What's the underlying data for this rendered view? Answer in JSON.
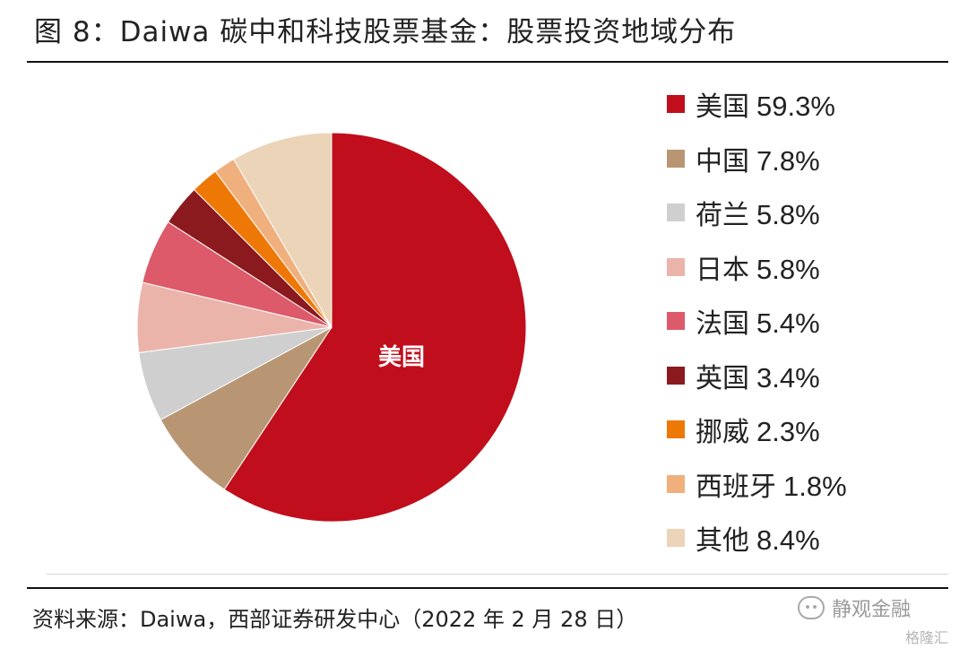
{
  "title": "图 8：Daiwa 碳中和科技股票基金：股票投资地域分布",
  "source": "资料来源：Daiwa，西部证券研发中心（2022 年 2 月 28 日）",
  "watermark": {
    "primary": "静观金融",
    "secondary": "格隆汇",
    "icon": "wechat-icon"
  },
  "chart_data": {
    "type": "pie",
    "slice_label": "美国",
    "slices": [
      {
        "label": "美国",
        "value": 59.3,
        "display": "59.3%",
        "color": "#C00E1D"
      },
      {
        "label": "中国",
        "value": 7.8,
        "display": "7.8%",
        "color": "#B99673"
      },
      {
        "label": "荷兰",
        "value": 5.8,
        "display": "5.8%",
        "color": "#CFCFCF"
      },
      {
        "label": "日本",
        "value": 5.8,
        "display": "5.8%",
        "color": "#EBB4AA"
      },
      {
        "label": "法国",
        "value": 5.4,
        "display": "5.4%",
        "color": "#DC5A6A"
      },
      {
        "label": "英国",
        "value": 3.4,
        "display": "3.4%",
        "color": "#8B1A1F"
      },
      {
        "label": "挪威",
        "value": 2.3,
        "display": "2.3%",
        "color": "#EE7806"
      },
      {
        "label": "西班牙",
        "value": 1.8,
        "display": "1.8%",
        "color": "#F0B07E"
      },
      {
        "label": "其他",
        "value": 8.4,
        "display": "8.4%",
        "color": "#ECD4B8"
      }
    ]
  }
}
